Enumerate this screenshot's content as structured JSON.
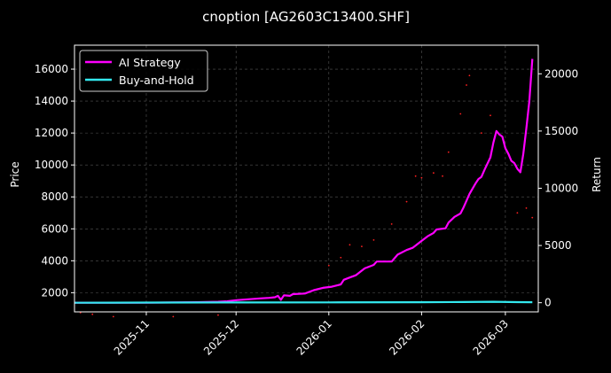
{
  "chart_data": {
    "type": "line",
    "title": "cnoption [AG2603C13400.SHF]",
    "xlabel": "",
    "ylabel": "Price",
    "y2label": "Return",
    "x_range": [
      "2025-10-08",
      "2026-03-12"
    ],
    "ylim": [
      800,
      17500
    ],
    "y2lim": [
      -800,
      22500
    ],
    "x_ticks": [
      "2025-11",
      "2025-12",
      "2026-01",
      "2026-02",
      "2026-03"
    ],
    "y_ticks": [
      2000,
      4000,
      6000,
      8000,
      10000,
      12000,
      14000,
      16000
    ],
    "y2_ticks": [
      0,
      5000,
      10000,
      15000,
      20000
    ],
    "grid": true,
    "legend_position": "top-left",
    "colors": {
      "background": "#000000",
      "ai_strategy": "#ff00ff",
      "buy_and_hold": "#33e8ee",
      "price_points": "#ff2020",
      "grid": "#555555",
      "axes": "#ffffff"
    },
    "series": [
      {
        "name": "AI Strategy",
        "axis": "return",
        "points": [
          [
            "2025-10-08",
            0
          ],
          [
            "2025-10-20",
            0
          ],
          [
            "2025-11-01",
            0
          ],
          [
            "2025-11-10",
            20
          ],
          [
            "2025-11-18",
            40
          ],
          [
            "2025-11-25",
            80
          ],
          [
            "2025-11-28",
            120
          ],
          [
            "2025-12-01",
            220
          ],
          [
            "2025-12-05",
            300
          ],
          [
            "2025-12-09",
            380
          ],
          [
            "2025-12-12",
            420
          ],
          [
            "2025-12-14",
            480
          ],
          [
            "2025-12-15",
            600
          ],
          [
            "2025-12-16",
            250
          ],
          [
            "2025-12-17",
            650
          ],
          [
            "2025-12-19",
            600
          ],
          [
            "2025-12-20",
            750
          ],
          [
            "2025-12-24",
            800
          ],
          [
            "2025-12-27",
            1100
          ],
          [
            "2025-12-30",
            1300
          ],
          [
            "2026-01-02",
            1400
          ],
          [
            "2026-01-05",
            1600
          ],
          [
            "2026-01-06",
            2000
          ],
          [
            "2026-01-08",
            2200
          ],
          [
            "2026-01-10",
            2400
          ],
          [
            "2026-01-12",
            2800
          ],
          [
            "2026-01-13",
            3000
          ],
          [
            "2026-01-16",
            3300
          ],
          [
            "2026-01-17",
            3600
          ],
          [
            "2026-01-19",
            3600
          ],
          [
            "2026-01-22",
            3600
          ],
          [
            "2026-01-24",
            4200
          ],
          [
            "2026-01-27",
            4600
          ],
          [
            "2026-01-29",
            4800
          ],
          [
            "2026-01-30",
            5000
          ],
          [
            "2026-02-01",
            5400
          ],
          [
            "2026-02-03",
            5800
          ],
          [
            "2026-02-05",
            6100
          ],
          [
            "2026-02-06",
            6400
          ],
          [
            "2026-02-09",
            6500
          ],
          [
            "2026-02-10",
            7000
          ],
          [
            "2026-02-12",
            7500
          ],
          [
            "2026-02-14",
            7800
          ],
          [
            "2026-02-15",
            8300
          ],
          [
            "2026-02-17",
            9500
          ],
          [
            "2026-02-19",
            10400
          ],
          [
            "2026-02-20",
            10800
          ],
          [
            "2026-02-21",
            11000
          ],
          [
            "2026-02-22",
            11600
          ],
          [
            "2026-02-24",
            12700
          ],
          [
            "2026-02-25",
            14000
          ],
          [
            "2026-02-26",
            15000
          ],
          [
            "2026-02-27",
            14700
          ],
          [
            "2026-02-28",
            14500
          ],
          [
            "2026-03-01",
            13500
          ],
          [
            "2026-03-02",
            13000
          ],
          [
            "2026-03-03",
            12400
          ],
          [
            "2026-03-04",
            12200
          ],
          [
            "2026-03-05",
            11700
          ],
          [
            "2026-03-06",
            11400
          ],
          [
            "2026-03-07",
            13000
          ],
          [
            "2026-03-08",
            15200
          ],
          [
            "2026-03-09",
            17600
          ],
          [
            "2026-03-10",
            21300
          ]
        ]
      },
      {
        "name": "Buy-and-Hold",
        "axis": "return",
        "points": [
          [
            "2025-10-08",
            0
          ],
          [
            "2025-11-01",
            10
          ],
          [
            "2025-12-01",
            20
          ],
          [
            "2026-01-01",
            30
          ],
          [
            "2026-02-01",
            40
          ],
          [
            "2026-02-15",
            60
          ],
          [
            "2026-02-25",
            80
          ],
          [
            "2026-03-05",
            50
          ],
          [
            "2026-03-10",
            40
          ]
        ]
      },
      {
        "name": "Price",
        "axis": "price",
        "style": "points",
        "points": [
          [
            "2025-10-10",
            750
          ],
          [
            "2025-10-14",
            650
          ],
          [
            "2025-10-21",
            500
          ],
          [
            "2025-11-10",
            500
          ],
          [
            "2025-11-25",
            600
          ],
          [
            "2025-12-16",
            1400
          ],
          [
            "2025-12-28",
            2200
          ],
          [
            "2026-01-01",
            3700
          ],
          [
            "2026-01-05",
            4200
          ],
          [
            "2026-01-08",
            5000
          ],
          [
            "2026-01-12",
            4900
          ],
          [
            "2026-01-16",
            5300
          ],
          [
            "2026-01-22",
            6300
          ],
          [
            "2026-01-27",
            7700
          ],
          [
            "2026-01-30",
            9300
          ],
          [
            "2026-02-01",
            9200
          ],
          [
            "2026-02-05",
            9500
          ],
          [
            "2026-02-08",
            9300
          ],
          [
            "2026-02-10",
            10800
          ],
          [
            "2026-02-14",
            13200
          ],
          [
            "2026-02-16",
            15000
          ],
          [
            "2026-02-17",
            15600
          ],
          [
            "2026-02-21",
            12000
          ],
          [
            "2026-02-24",
            13100
          ],
          [
            "2026-03-05",
            7000
          ],
          [
            "2026-03-08",
            7300
          ],
          [
            "2026-03-10",
            6700
          ]
        ]
      }
    ]
  }
}
